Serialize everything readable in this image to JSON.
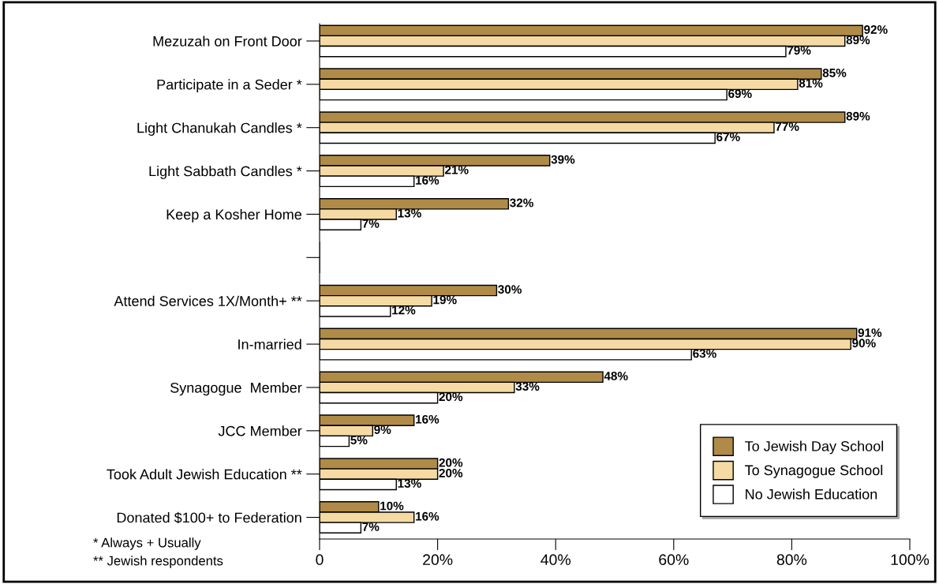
{
  "chart_data": {
    "type": "bar",
    "orientation": "horizontal",
    "categories": [
      "Mezuzah on Front Door",
      "Participate in a Seder *",
      "Light Chanukah Candles *",
      "Light Sabbath Candles *",
      "Keep a Kosher Home",
      null,
      "Attend Services 1X/Month+ **",
      "In-married",
      "Synagogue  Member",
      "JCC Member",
      "Took Adult Jewish Education **",
      "Donated $100+ to Federation"
    ],
    "series": [
      {
        "name": "To Jewish Day School",
        "color": "#b08b47",
        "values": [
          92,
          85,
          89,
          39,
          32,
          null,
          30,
          91,
          48,
          16,
          20,
          10
        ],
        "value_labels": [
          "92%",
          "85%",
          "89%",
          "39%",
          "32%",
          null,
          "30%",
          "91%",
          "48%",
          "16%",
          "20%",
          "10%"
        ]
      },
      {
        "name": "To Synagogue School",
        "color": "#f5daa4",
        "values": [
          89,
          81,
          77,
          21,
          13,
          null,
          19,
          90,
          33,
          9,
          20,
          16
        ],
        "value_labels": [
          "89%",
          "81%",
          "77%",
          "21%",
          "13%",
          null,
          "19%",
          "90%",
          "33%",
          "9%",
          "20%",
          "16%"
        ]
      },
      {
        "name": "No Jewish Education",
        "color": "#ffffff",
        "values": [
          79,
          69,
          67,
          16,
          7,
          null,
          12,
          63,
          20,
          5,
          13,
          7
        ],
        "value_labels": [
          "79%",
          "69%",
          "67%",
          "16%",
          "7%",
          null,
          "12%",
          "63%",
          "20%",
          "5%",
          "13%",
          "7%"
        ]
      }
    ],
    "xlim": [
      0,
      100
    ],
    "xticks": [
      0,
      {
        "value": 20,
        "label": "20%"
      },
      {
        "value": 40,
        "label": "40%"
      },
      {
        "value": 60,
        "label": "60%"
      },
      {
        "value": 80,
        "label": "80%"
      },
      {
        "value": 100,
        "label": "100%"
      }
    ],
    "grid": false,
    "legend": "bottom right",
    "annotations": [
      "* Always + Usually",
      "** Jewish respondents"
    ]
  }
}
